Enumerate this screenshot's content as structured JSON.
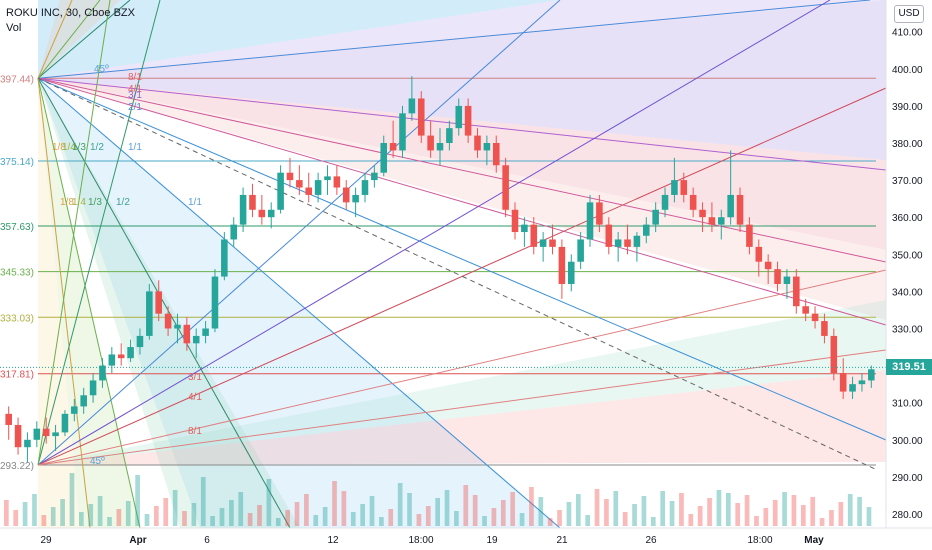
{
  "header": {
    "symbol_line": "ROKU INC, 30, Cboe BZX",
    "indicator": "Vol"
  },
  "currency": "USD",
  "last_price": "319.51",
  "chart_data": {
    "type": "candlestick",
    "yaxis": {
      "ylim": [
        274,
        418
      ],
      "ticks": [
        280,
        290,
        300,
        310,
        320,
        330,
        340,
        350,
        360,
        370,
        380,
        390,
        400,
        410
      ],
      "tick_labels": [
        "280.00",
        "290.00",
        "300.00",
        "310.00",
        "320.00",
        "330.00",
        "340.00",
        "350.00",
        "360.00",
        "370.00",
        "380.00",
        "390.00",
        "400.00",
        "410.00"
      ]
    },
    "xaxis": {
      "labels": [
        "29",
        "Apr",
        "6",
        "12",
        "18:00",
        "19",
        "21",
        "26",
        "18:00",
        "May"
      ],
      "bold": [
        false,
        true,
        false,
        false,
        false,
        false,
        false,
        false,
        false,
        true
      ]
    },
    "gann_levels": [
      {
        "label": "397.44)",
        "value": 397.44,
        "color": "#d08080"
      },
      {
        "label": "375.14)",
        "value": 375.14,
        "color": "#4aa8c8"
      },
      {
        "label": "357.63)",
        "value": 357.63,
        "color": "#2e9a6a"
      },
      {
        "label": "345.33)",
        "value": 345.33,
        "color": "#6ab04c"
      },
      {
        "label": "333.03)",
        "value": 333.03,
        "color": "#b0b040"
      },
      {
        "label": "317.81)",
        "value": 317.81,
        "color": "#e05050"
      },
      {
        "label": "293.22)",
        "value": 293.22,
        "color": "#888888"
      }
    ],
    "ratio_labels": [
      {
        "text": "8/1",
        "color": "#e06060"
      },
      {
        "text": "4/1",
        "color": "#e06060"
      },
      {
        "text": "3/1",
        "color": "#7a6ad0"
      },
      {
        "text": "2/1",
        "color": "#5a88d0"
      },
      {
        "text": "1/1",
        "color": "#5aa0d8"
      },
      {
        "text": "1/1",
        "color": "#5aa0d8"
      },
      {
        "text": "1/8",
        "color": "#e0a040"
      },
      {
        "text": "1/4",
        "color": "#a0b040"
      },
      {
        "text": "1/3",
        "color": "#40a060"
      },
      {
        "text": "1/2",
        "color": "#40a090"
      },
      {
        "text": "1/8",
        "color": "#e0a040"
      },
      {
        "text": "1/4",
        "color": "#a0b040"
      },
      {
        "text": "1/3",
        "color": "#40a060"
      },
      {
        "text": "1/2",
        "color": "#40a090"
      },
      {
        "text": "45º",
        "color": "#5aa0d8"
      },
      {
        "text": "3/1",
        "color": "#e06060"
      },
      {
        "text": "4/1",
        "color": "#e06060"
      },
      {
        "text": "8/1",
        "color": "#e06060"
      },
      {
        "text": "45º",
        "color": "#5aa0d8"
      }
    ],
    "candles": [
      [
        307,
        309,
        300,
        304
      ],
      [
        304,
        306,
        296,
        298
      ],
      [
        298,
        302,
        294,
        300
      ],
      [
        300,
        305,
        298,
        303
      ],
      [
        303,
        306,
        299,
        301
      ],
      [
        301,
        304,
        297,
        302
      ],
      [
        302,
        308,
        301,
        307
      ],
      [
        307,
        311,
        305,
        309
      ],
      [
        309,
        314,
        307,
        312
      ],
      [
        312,
        318,
        310,
        316
      ],
      [
        316,
        322,
        314,
        320
      ],
      [
        320,
        325,
        318,
        323
      ],
      [
        323,
        326,
        320,
        322
      ],
      [
        322,
        327,
        321,
        325
      ],
      [
        325,
        330,
        323,
        328
      ],
      [
        328,
        342,
        327,
        340
      ],
      [
        340,
        343,
        332,
        334
      ],
      [
        334,
        336,
        328,
        330
      ],
      [
        330,
        334,
        326,
        331
      ],
      [
        331,
        333,
        324,
        326
      ],
      [
        326,
        330,
        322,
        328
      ],
      [
        328,
        332,
        326,
        330
      ],
      [
        330,
        346,
        329,
        344
      ],
      [
        344,
        356,
        343,
        354
      ],
      [
        354,
        360,
        352,
        358
      ],
      [
        358,
        368,
        356,
        366
      ],
      [
        366,
        369,
        360,
        362
      ],
      [
        362,
        366,
        358,
        360
      ],
      [
        360,
        364,
        357,
        362
      ],
      [
        362,
        374,
        361,
        372
      ],
      [
        372,
        376,
        368,
        370
      ],
      [
        370,
        374,
        366,
        368
      ],
      [
        368,
        372,
        364,
        366
      ],
      [
        366,
        372,
        364,
        370
      ],
      [
        370,
        374,
        366,
        371
      ],
      [
        371,
        374,
        366,
        368
      ],
      [
        368,
        370,
        362,
        364
      ],
      [
        364,
        368,
        360,
        366
      ],
      [
        366,
        372,
        364,
        370
      ],
      [
        370,
        374,
        368,
        372
      ],
      [
        372,
        382,
        371,
        380
      ],
      [
        380,
        386,
        376,
        378
      ],
      [
        378,
        390,
        376,
        388
      ],
      [
        388,
        398,
        386,
        392
      ],
      [
        392,
        394,
        380,
        382
      ],
      [
        382,
        386,
        376,
        378
      ],
      [
        378,
        384,
        374,
        380
      ],
      [
        380,
        386,
        378,
        384
      ],
      [
        384,
        392,
        382,
        390
      ],
      [
        390,
        392,
        380,
        382
      ],
      [
        382,
        384,
        376,
        378
      ],
      [
        378,
        382,
        374,
        380
      ],
      [
        380,
        382,
        372,
        374
      ],
      [
        374,
        376,
        360,
        362
      ],
      [
        362,
        364,
        354,
        356
      ],
      [
        356,
        360,
        352,
        358
      ],
      [
        358,
        360,
        350,
        352
      ],
      [
        352,
        356,
        348,
        354
      ],
      [
        354,
        358,
        350,
        352
      ],
      [
        352,
        354,
        338,
        342
      ],
      [
        342,
        350,
        340,
        348
      ],
      [
        348,
        356,
        346,
        354
      ],
      [
        354,
        366,
        352,
        364
      ],
      [
        364,
        366,
        356,
        358
      ],
      [
        358,
        360,
        350,
        352
      ],
      [
        352,
        356,
        348,
        354
      ],
      [
        354,
        358,
        350,
        352
      ],
      [
        352,
        356,
        348,
        355
      ],
      [
        355,
        360,
        353,
        358
      ],
      [
        358,
        364,
        356,
        362
      ],
      [
        362,
        368,
        360,
        366
      ],
      [
        366,
        376,
        364,
        370
      ],
      [
        370,
        372,
        364,
        366
      ],
      [
        366,
        368,
        360,
        362
      ],
      [
        362,
        364,
        356,
        360
      ],
      [
        360,
        364,
        356,
        358
      ],
      [
        358,
        362,
        354,
        360
      ],
      [
        360,
        378,
        358,
        366
      ],
      [
        366,
        368,
        356,
        358
      ],
      [
        358,
        360,
        350,
        352
      ],
      [
        352,
        354,
        344,
        348
      ],
      [
        348,
        350,
        342,
        346
      ],
      [
        346,
        348,
        340,
        342
      ],
      [
        342,
        346,
        338,
        344
      ],
      [
        344,
        346,
        334,
        336
      ],
      [
        336,
        338,
        332,
        334
      ],
      [
        334,
        336,
        330,
        332
      ],
      [
        332,
        334,
        326,
        328
      ],
      [
        328,
        330,
        316,
        318
      ],
      [
        318,
        322,
        311,
        313
      ],
      [
        313,
        317,
        311,
        315
      ],
      [
        315,
        318,
        313,
        316
      ],
      [
        316,
        320,
        314,
        319
      ]
    ]
  }
}
